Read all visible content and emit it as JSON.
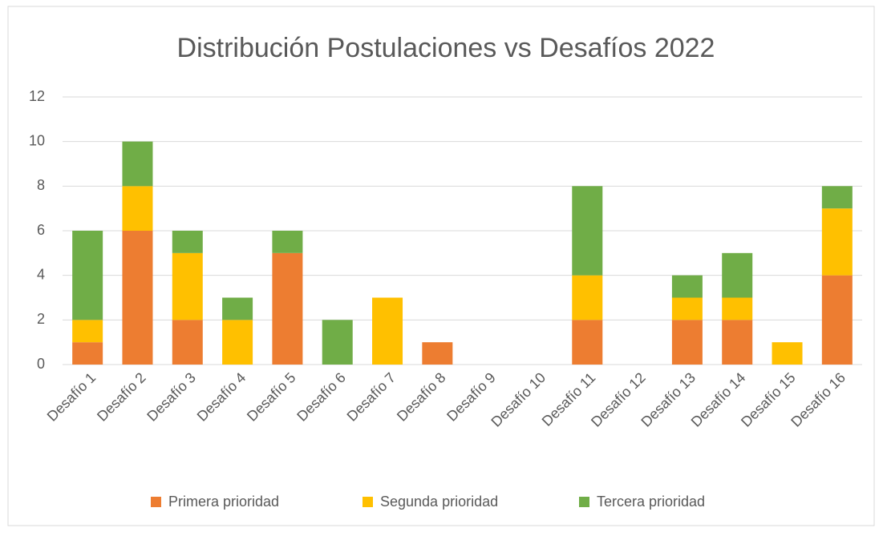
{
  "chart_data": {
    "type": "stacked_bar",
    "title": "Distribución Postulaciones vs Desafíos 2022",
    "categories": [
      "Desafío 1",
      "Desafío 2",
      "Desafío 3",
      "Desafío 4",
      "Desafío 5",
      "Desafío 6",
      "Desafío 7",
      "Desafío 8",
      "Desafío 9",
      "Desafío 10",
      "Desafío 11",
      "Desafío 12",
      "Desafío 13",
      "Desafío 14",
      "Desafío 15",
      "Desafío 16"
    ],
    "series": [
      {
        "name": "Primera prioridad",
        "color": "#ED7D31",
        "values": [
          1,
          6,
          2,
          0,
          5,
          0,
          0,
          1,
          0,
          0,
          2,
          0,
          2,
          2,
          0,
          4
        ]
      },
      {
        "name": "Segunda prioridad",
        "color": "#FFC000",
        "values": [
          1,
          2,
          3,
          2,
          0,
          0,
          3,
          0,
          0,
          0,
          2,
          0,
          1,
          1,
          1,
          3
        ]
      },
      {
        "name": "Tercera prioridad",
        "color": "#70AD47",
        "values": [
          4,
          2,
          1,
          1,
          1,
          2,
          0,
          0,
          0,
          0,
          4,
          0,
          1,
          2,
          0,
          1
        ]
      }
    ],
    "ylim": [
      0,
      12
    ],
    "yticks": [
      0,
      2,
      4,
      6,
      8,
      10,
      12
    ],
    "grid": true,
    "legend": "bottom"
  }
}
